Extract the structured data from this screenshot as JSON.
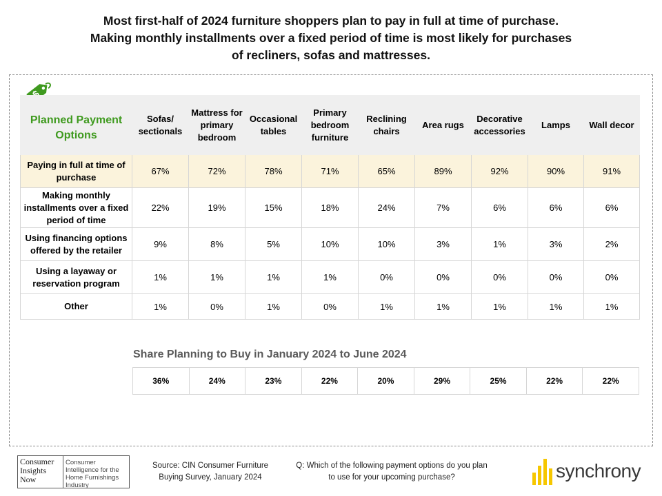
{
  "title": {
    "line1": "Most first-half of 2024 furniture shoppers plan to pay in full at time of purchase.",
    "line2": "Making monthly installments over a fixed period of time is most likely for purchases",
    "line3": "of recliners, sofas and mattresses."
  },
  "colors": {
    "accent_green": "#3f9a1f",
    "highlight_row": "#fbf3dc",
    "header_bg": "#efefef",
    "brand_yellow": "#f6c700"
  },
  "icon": "dollar-tag-icon",
  "chart_data": {
    "type": "table",
    "corner_label": "Planned Payment Options",
    "columns": [
      "Sofas/ sectionals",
      "Mattress for primary bedroom",
      "Occasional tables",
      "Primary bedroom furniture",
      "Reclining chairs",
      "Area rugs",
      "Decorative accessories",
      "Lamps",
      "Wall decor"
    ],
    "rows": [
      {
        "label": "Paying in full at time of purchase",
        "values": [
          "67%",
          "72%",
          "78%",
          "71%",
          "65%",
          "89%",
          "92%",
          "90%",
          "91%"
        ]
      },
      {
        "label": "Making monthly installments over a fixed period of time",
        "values": [
          "22%",
          "19%",
          "15%",
          "18%",
          "24%",
          "7%",
          "6%",
          "6%",
          "6%"
        ]
      },
      {
        "label": "Using financing options offered by the retailer",
        "values": [
          "9%",
          "8%",
          "5%",
          "10%",
          "10%",
          "3%",
          "1%",
          "3%",
          "2%"
        ]
      },
      {
        "label": "Using a layaway or reservation program",
        "values": [
          "1%",
          "1%",
          "1%",
          "1%",
          "0%",
          "0%",
          "0%",
          "0%",
          "0%"
        ]
      },
      {
        "label": "Other",
        "values": [
          "1%",
          "0%",
          "1%",
          "0%",
          "1%",
          "1%",
          "1%",
          "1%",
          "1%"
        ]
      }
    ],
    "share": {
      "title": "Share Planning to Buy in January 2024 to June 2024",
      "values": [
        "36%",
        "24%",
        "23%",
        "22%",
        "20%",
        "29%",
        "25%",
        "22%",
        "22%"
      ]
    }
  },
  "footer": {
    "cin_logo": {
      "left": [
        "Consumer",
        "Insights",
        "Now"
      ],
      "right": "Consumer Intelligence for the Home Furnishings Industry"
    },
    "source": "Source: CIN Consumer Furniture Buying Survey, January 2024",
    "question": "Q: Which of the following payment options do you plan to use for your upcoming purchase?",
    "brand": "synchrony"
  }
}
